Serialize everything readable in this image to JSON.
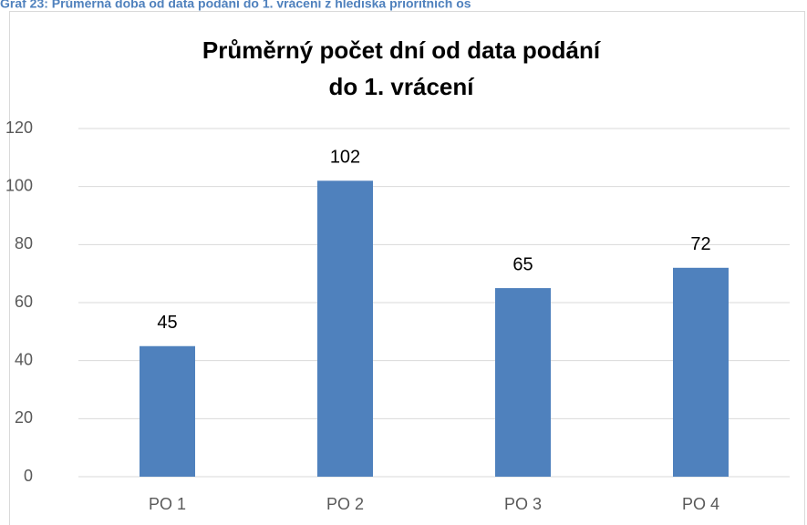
{
  "chart_data": {
    "type": "bar",
    "caption": "Graf 23: Průměrná doba od data podání do 1. vrácení z hlediska prioritních os",
    "title": [
      "Průměrný počet dní od data podání",
      "do 1. vrácení"
    ],
    "categories": [
      "PO 1",
      "PO 2",
      "PO 3",
      "PO 4"
    ],
    "values": [
      45,
      102,
      65,
      72
    ],
    "color": "#4f81bd",
    "ylim": [
      0,
      120
    ],
    "yticks": [
      0,
      20,
      40,
      60,
      80,
      100,
      120
    ],
    "grid": true
  }
}
